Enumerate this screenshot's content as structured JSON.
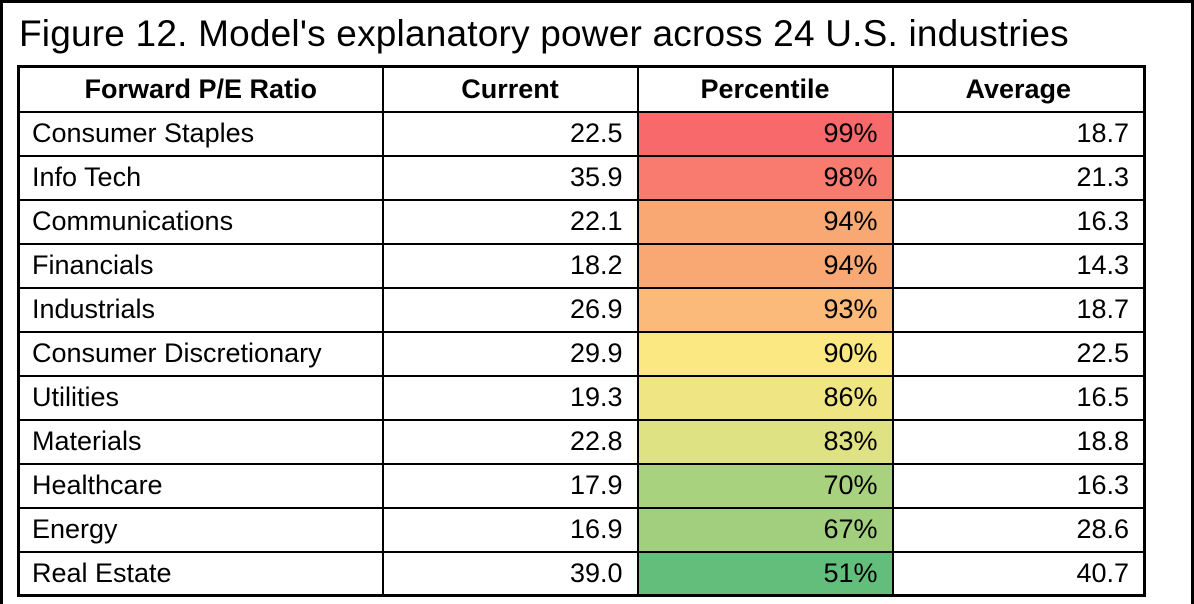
{
  "figure": {
    "title": "Figure 12. Model's explanatory power across 24 U.S. industries"
  },
  "table": {
    "headers": [
      "Forward P/E Ratio",
      "Current",
      "Percentile",
      "Average"
    ],
    "rows": [
      {
        "industry": "Consumer Staples",
        "current": "22.5",
        "percentile": "99%",
        "average": "18.7",
        "percentile_color": "#F8696B"
      },
      {
        "industry": "Info Tech",
        "current": "35.9",
        "percentile": "98%",
        "average": "21.3",
        "percentile_color": "#F97B6F"
      },
      {
        "industry": "Communications",
        "current": "22.1",
        "percentile": "94%",
        "average": "16.3",
        "percentile_color": "#FAA873"
      },
      {
        "industry": "Financials",
        "current": "18.2",
        "percentile": "94%",
        "average": "14.3",
        "percentile_color": "#FAA873"
      },
      {
        "industry": "Industrials",
        "current": "26.9",
        "percentile": "93%",
        "average": "18.7",
        "percentile_color": "#FBB97A"
      },
      {
        "industry": "Consumer Discretionary",
        "current": "29.9",
        "percentile": "90%",
        "average": "22.5",
        "percentile_color": "#FCE883"
      },
      {
        "industry": "Utilities",
        "current": "19.3",
        "percentile": "86%",
        "average": "16.5",
        "percentile_color": "#EFE683"
      },
      {
        "industry": "Materials",
        "current": "22.8",
        "percentile": "83%",
        "average": "18.8",
        "percentile_color": "#DFE282"
      },
      {
        "industry": "Healthcare",
        "current": "17.9",
        "percentile": "70%",
        "average": "16.3",
        "percentile_color": "#A9D27F"
      },
      {
        "industry": "Energy",
        "current": "16.9",
        "percentile": "67%",
        "average": "28.6",
        "percentile_color": "#A2CF7D"
      },
      {
        "industry": "Real Estate",
        "current": "39.0",
        "percentile": "51%",
        "average": "40.7",
        "percentile_color": "#63BE7B"
      }
    ]
  },
  "colors": {
    "scale_high_red": "#F8696B",
    "scale_mid_yellow": "#FCE883",
    "scale_low_green": "#63BE7B",
    "grid_border": "#000000",
    "background": "#FFFFFF"
  },
  "chart_data": {
    "type": "table",
    "title": "Figure 12. Model's explanatory power across 24 U.S. industries",
    "columns": [
      "Forward P/E Ratio",
      "Current",
      "Percentile",
      "Average"
    ],
    "rows": [
      [
        "Consumer Staples",
        22.5,
        "99%",
        18.7
      ],
      [
        "Info Tech",
        35.9,
        "98%",
        21.3
      ],
      [
        "Communications",
        22.1,
        "94%",
        16.3
      ],
      [
        "Financials",
        18.2,
        "94%",
        14.3
      ],
      [
        "Industrials",
        26.9,
        "93%",
        18.7
      ],
      [
        "Consumer Discretionary",
        29.9,
        "90%",
        22.5
      ],
      [
        "Utilities",
        19.3,
        "86%",
        16.5
      ],
      [
        "Materials",
        22.8,
        "83%",
        18.8
      ],
      [
        "Healthcare",
        17.9,
        "70%",
        16.3
      ],
      [
        "Energy",
        16.9,
        "67%",
        28.6
      ],
      [
        "Real Estate",
        39.0,
        "51%",
        40.7
      ]
    ],
    "percentile_color_scale": {
      "style": "red-yellow-green",
      "high": "#F8696B",
      "mid": "#FCE883",
      "low": "#63BE7B"
    },
    "layout": {
      "percentile_column_colored": true,
      "numbers_right_aligned": true,
      "grid": true
    }
  }
}
